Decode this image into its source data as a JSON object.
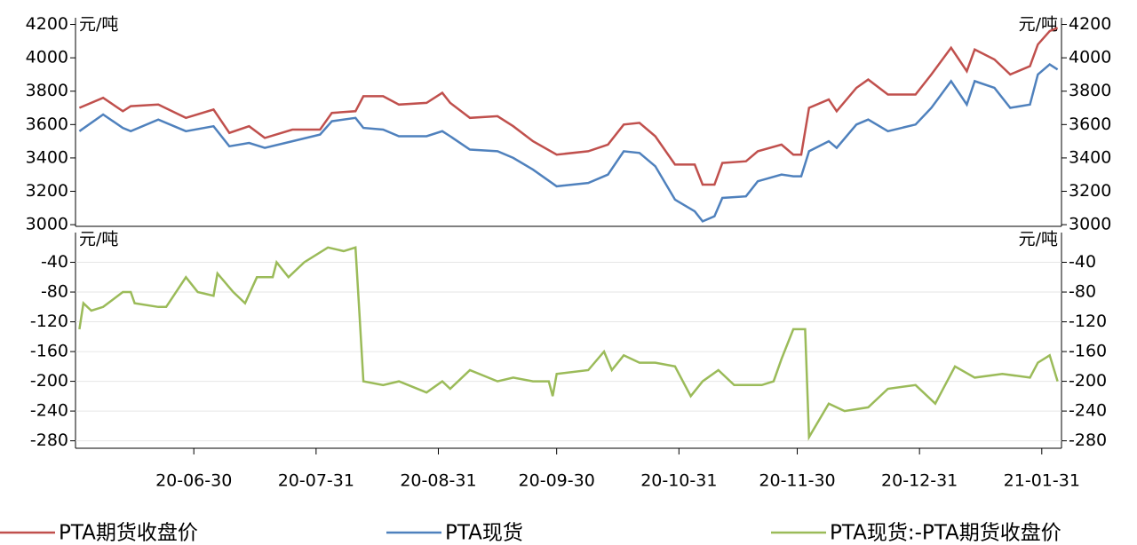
{
  "chart_data": [
    {
      "type": "line",
      "y_label": "元/吨",
      "xlim": [
        "20-05-31",
        "21-02-05"
      ],
      "ylim": [
        2990,
        4240
      ],
      "yticks": [
        3000,
        3200,
        3400,
        3600,
        3800,
        4000,
        4200
      ],
      "grid": false,
      "x": [
        "20-06-01",
        "20-06-07",
        "20-06-12",
        "20-06-14",
        "20-06-21",
        "20-06-28",
        "20-07-05",
        "20-07-09",
        "20-07-14",
        "20-07-18",
        "20-07-25",
        "20-08-01",
        "20-08-04",
        "20-08-10",
        "20-08-12",
        "20-08-17",
        "20-08-21",
        "20-08-28",
        "20-09-01",
        "20-09-03",
        "20-09-08",
        "20-09-15",
        "20-09-19",
        "20-09-24",
        "20-09-30",
        "20-10-08",
        "20-10-13",
        "20-10-17",
        "20-10-21",
        "20-10-25",
        "20-10-30",
        "20-11-04",
        "20-11-06",
        "20-11-09",
        "20-11-11",
        "20-11-17",
        "20-11-20",
        "20-11-26",
        "20-11-29",
        "20-12-01",
        "20-12-03",
        "20-12-08",
        "20-12-10",
        "20-12-15",
        "20-12-18",
        "20-12-23",
        "20-12-30",
        "21-01-03",
        "21-01-08",
        "21-01-12",
        "21-01-14",
        "21-01-19",
        "21-01-23",
        "21-01-28",
        "21-01-30",
        "21-02-02",
        "21-02-04"
      ],
      "series": [
        {
          "name": "PTA期货收盘价",
          "color": "#c0504d",
          "values": [
            3700,
            3760,
            3680,
            3710,
            3720,
            3640,
            3690,
            3550,
            3590,
            3520,
            3570,
            3570,
            3670,
            3680,
            3770,
            3770,
            3720,
            3730,
            3790,
            3730,
            3640,
            3650,
            3590,
            3500,
            3420,
            3440,
            3480,
            3600,
            3610,
            3530,
            3360,
            3360,
            3240,
            3240,
            3370,
            3380,
            3440,
            3480,
            3420,
            3420,
            3700,
            3750,
            3680,
            3820,
            3870,
            3780,
            3780,
            3900,
            4060,
            3920,
            4050,
            3990,
            3900,
            3950,
            4080,
            4160,
            4180
          ]
        },
        {
          "name": "PTA现货",
          "color": "#4f81bd",
          "values": [
            3560,
            3660,
            3580,
            3560,
            3630,
            3560,
            3590,
            3470,
            3490,
            3460,
            3500,
            3540,
            3620,
            3640,
            3580,
            3570,
            3530,
            3530,
            3560,
            3530,
            3450,
            3440,
            3400,
            3330,
            3230,
            3250,
            3300,
            3440,
            3430,
            3350,
            3150,
            3080,
            3020,
            3050,
            3160,
            3170,
            3260,
            3300,
            3290,
            3290,
            3440,
            3500,
            3460,
            3600,
            3630,
            3560,
            3600,
            3700,
            3860,
            3720,
            3860,
            3820,
            3700,
            3720,
            3900,
            3960,
            3930
          ]
        }
      ]
    },
    {
      "type": "line",
      "y_label": "元/吨",
      "xlim": [
        "20-05-31",
        "21-02-05"
      ],
      "ylim": [
        -290,
        0
      ],
      "yticks": [
        -280,
        -240,
        -200,
        -160,
        -120,
        -80,
        -40
      ],
      "xticks": [
        "20-06-30",
        "20-07-31",
        "20-08-31",
        "20-09-30",
        "20-10-31",
        "20-11-30",
        "20-12-31",
        "21-01-31"
      ],
      "grid": true,
      "x": [
        "20-06-01",
        "20-06-02",
        "20-06-04",
        "20-06-07",
        "20-06-12",
        "20-06-14",
        "20-06-15",
        "20-06-21",
        "20-06-23",
        "20-06-28",
        "20-07-01",
        "20-07-05",
        "20-07-06",
        "20-07-10",
        "20-07-13",
        "20-07-16",
        "20-07-20",
        "20-07-21",
        "20-07-24",
        "20-07-28",
        "20-08-03",
        "20-08-07",
        "20-08-10",
        "20-08-11",
        "20-08-12",
        "20-08-17",
        "20-08-21",
        "20-08-28",
        "20-09-01",
        "20-09-03",
        "20-09-08",
        "20-09-15",
        "20-09-19",
        "20-09-24",
        "20-09-28",
        "20-09-29",
        "20-09-30",
        "20-10-08",
        "20-10-12",
        "20-10-14",
        "20-10-17",
        "20-10-21",
        "20-10-25",
        "20-10-30",
        "20-11-03",
        "20-11-06",
        "20-11-10",
        "20-11-14",
        "20-11-21",
        "20-11-24",
        "20-11-26",
        "20-11-29",
        "20-12-02",
        "20-12-03",
        "20-12-08",
        "20-12-12",
        "20-12-18",
        "20-12-23",
        "20-12-30",
        "21-01-04",
        "21-01-09",
        "21-01-14",
        "21-01-21",
        "21-01-28",
        "21-01-30",
        "21-02-02",
        "21-02-04"
      ],
      "series": [
        {
          "name": "PTA现货:-PTA期货收盘价",
          "color": "#9bbb59",
          "values": [
            -130,
            -95,
            -105,
            -100,
            -80,
            -80,
            -95,
            -100,
            -100,
            -60,
            -80,
            -85,
            -55,
            -80,
            -95,
            -60,
            -60,
            -40,
            -60,
            -40,
            -20,
            -25,
            -20,
            -110,
            -200,
            -205,
            -200,
            -215,
            -200,
            -210,
            -185,
            -200,
            -195,
            -200,
            -200,
            -220,
            -190,
            -185,
            -160,
            -185,
            -165,
            -175,
            -175,
            -180,
            -220,
            -200,
            -185,
            -205,
            -205,
            -200,
            -170,
            -130,
            -130,
            -275,
            -230,
            -240,
            -235,
            -210,
            -205,
            -230,
            -180,
            -195,
            -190,
            -195,
            -175,
            -165,
            -200
          ]
        }
      ]
    }
  ]
}
